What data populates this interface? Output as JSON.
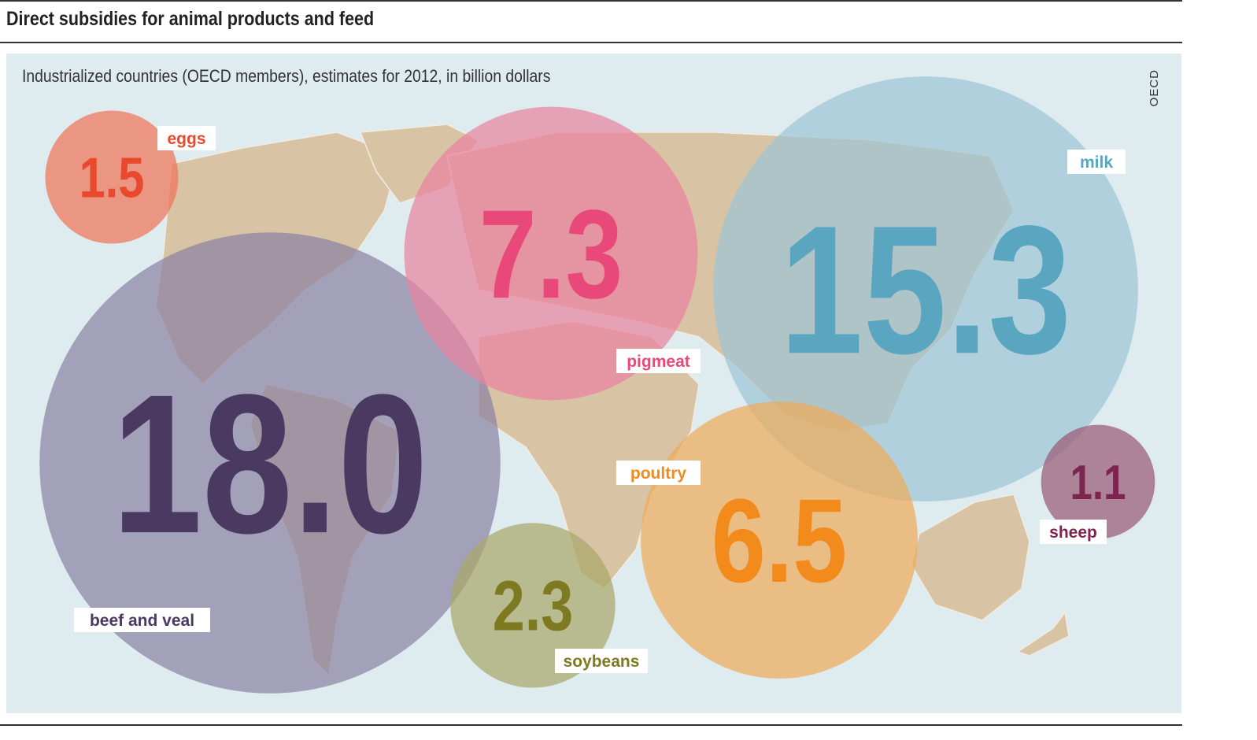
{
  "title": "Direct subsidies for animal products and feed",
  "subtitle": "Industrialized countries (OECD members), estimates for 2012, in billion dollars",
  "source": "OECD",
  "colors": {
    "background": "#deebef",
    "land": "#d9c3a5"
  },
  "chart_data": {
    "type": "bubble",
    "title": "Direct subsidies for animal products and feed",
    "subtitle": "Industrialized countries (OECD members), estimates for 2012, in billion dollars",
    "units": "billion dollars",
    "series": [
      {
        "name": "eggs",
        "value": 1.5,
        "label": "1.5",
        "fill": "#ef7458",
        "text_color": "#e94a2e"
      },
      {
        "name": "beef and veal",
        "value": 18.0,
        "label": "18.0",
        "fill": "#8b83a3",
        "text_color": "#4a3960"
      },
      {
        "name": "pigmeat",
        "value": 7.3,
        "label": "7.3",
        "fill": "#e8849f",
        "text_color": "#e8497a"
      },
      {
        "name": "milk",
        "value": 15.3,
        "label": "15.3",
        "fill": "#9cc5d4",
        "text_color": "#5aa5bf"
      },
      {
        "name": "poultry",
        "value": 6.5,
        "label": "6.5",
        "fill": "#eeaa5a",
        "text_color": "#f28a1c"
      },
      {
        "name": "soybeans",
        "value": 2.3,
        "label": "2.3",
        "fill": "#a9a76a",
        "text_color": "#7e7a22"
      },
      {
        "name": "sheep",
        "value": 1.1,
        "label": "1.1",
        "fill": "#9a5a76",
        "text_color": "#7c2550"
      }
    ]
  }
}
